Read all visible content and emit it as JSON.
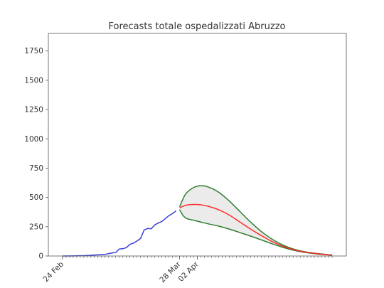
{
  "chart_data": {
    "type": "line",
    "title": "Forecasts totale ospedalizzati Abruzzo",
    "xlabel": "",
    "ylabel": "",
    "ylim": [
      0,
      1900
    ],
    "yticks": [
      0,
      250,
      500,
      750,
      1000,
      1250,
      1500,
      1750
    ],
    "x_start": "2020-02-24",
    "x_end": "2020-05-10",
    "xlim": [
      "2020-02-20",
      "2020-05-14"
    ],
    "x_tick_labels": [
      {
        "date": "2020-02-24",
        "label": "24 Feb"
      },
      {
        "date": "2020-03-28",
        "label": "28 Mar"
      },
      {
        "date": "2020-04-02",
        "label": "02 Apr"
      }
    ],
    "minor_ticks": "daily",
    "grid": false,
    "legend": "none",
    "colors": {
      "observed": "#3a3fd8",
      "forecast": "#ff2b2b",
      "bounds": "#2e7d2e",
      "band_fill": "#ebebeb"
    },
    "series": [
      {
        "role": "observed",
        "x": [
          "2020-02-24",
          "2020-02-27",
          "2020-03-01",
          "2020-03-04",
          "2020-03-07",
          "2020-03-09",
          "2020-03-10",
          "2020-03-11",
          "2020-03-12",
          "2020-03-13",
          "2020-03-14",
          "2020-03-15",
          "2020-03-16",
          "2020-03-17",
          "2020-03-18",
          "2020-03-19",
          "2020-03-20",
          "2020-03-21",
          "2020-03-22",
          "2020-03-23",
          "2020-03-24",
          "2020-03-25",
          "2020-03-26",
          "2020-03-27"
        ],
        "y": [
          0,
          1,
          3,
          8,
          14,
          26,
          30,
          60,
          62,
          72,
          100,
          110,
          128,
          150,
          222,
          235,
          232,
          265,
          282,
          295,
          320,
          345,
          362,
          385
        ]
      },
      {
        "role": "forecast",
        "x": [
          "2020-03-28",
          "2020-03-29",
          "2020-03-30",
          "2020-04-01",
          "2020-04-03",
          "2020-04-05",
          "2020-04-08",
          "2020-04-11",
          "2020-04-14",
          "2020-04-17",
          "2020-04-20",
          "2020-04-23",
          "2020-04-26",
          "2020-04-29",
          "2020-05-02",
          "2020-05-05",
          "2020-05-08",
          "2020-05-10"
        ],
        "y": [
          410,
          425,
          435,
          440,
          437,
          425,
          395,
          350,
          290,
          230,
          175,
          125,
          85,
          55,
          35,
          22,
          12,
          8
        ]
      },
      {
        "role": "upper_bound",
        "x": [
          "2020-03-28",
          "2020-03-29",
          "2020-03-30",
          "2020-04-01",
          "2020-04-03",
          "2020-04-05",
          "2020-04-08",
          "2020-04-11",
          "2020-04-14",
          "2020-04-17",
          "2020-04-20",
          "2020-04-23",
          "2020-04-26",
          "2020-04-29",
          "2020-05-02",
          "2020-05-05",
          "2020-05-08",
          "2020-05-10"
        ],
        "y": [
          420,
          490,
          540,
          585,
          600,
          590,
          545,
          470,
          380,
          290,
          210,
          145,
          95,
          60,
          38,
          24,
          14,
          9
        ]
      },
      {
        "role": "lower_bound",
        "x": [
          "2020-03-28",
          "2020-03-29",
          "2020-03-30",
          "2020-04-01",
          "2020-04-03",
          "2020-04-05",
          "2020-04-08",
          "2020-04-11",
          "2020-04-14",
          "2020-04-17",
          "2020-04-20",
          "2020-04-23",
          "2020-04-26",
          "2020-04-29",
          "2020-05-02",
          "2020-05-05",
          "2020-05-08",
          "2020-05-10"
        ],
        "y": [
          395,
          345,
          320,
          305,
          290,
          275,
          255,
          230,
          200,
          170,
          138,
          105,
          75,
          50,
          32,
          20,
          11,
          6
        ]
      }
    ]
  }
}
